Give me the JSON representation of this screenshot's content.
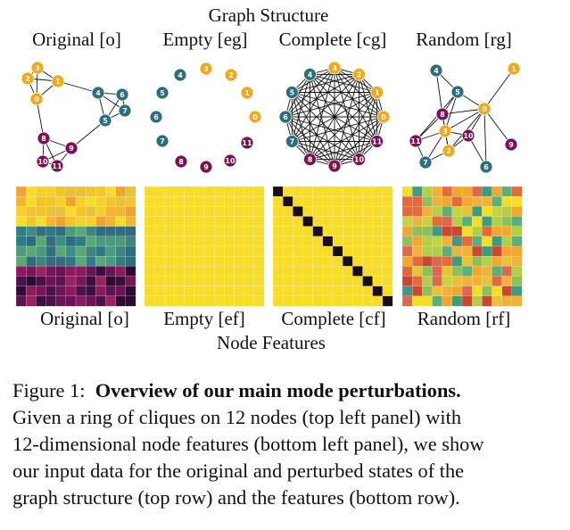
{
  "figure": {
    "top_title": "Graph Structure",
    "bottom_title": "Node Features",
    "graph_labels": [
      "Original [o]",
      "Empty [eg]",
      "Complete [cg]",
      "Random [rg]"
    ],
    "feature_labels": [
      "Original [o]",
      "Empty [ef]",
      "Complete [cf]",
      "Random [rf]"
    ]
  },
  "caption": {
    "prefix": "Figure 1:",
    "title": "Overview of our main mode perturbations.",
    "line1": "Given a ring of cliques on 12 nodes (top left panel) with",
    "line2": "12-dimensional node features (bottom left panel), we show",
    "line3": "our input data for the original and perturbed states of the",
    "line4": "graph structure (top row) and the features (bottom row)."
  },
  "node_labels": [
    "0",
    "1",
    "2",
    "3",
    "4",
    "5",
    "6",
    "7",
    "8",
    "9",
    "10",
    "11"
  ],
  "colors": {
    "orange": "#f2a81d",
    "teal": "#2d6e7e",
    "purple": "#7b1153",
    "matrix_yellow": "#f7dd2a",
    "matrix_black": "#1a0c1c"
  }
}
